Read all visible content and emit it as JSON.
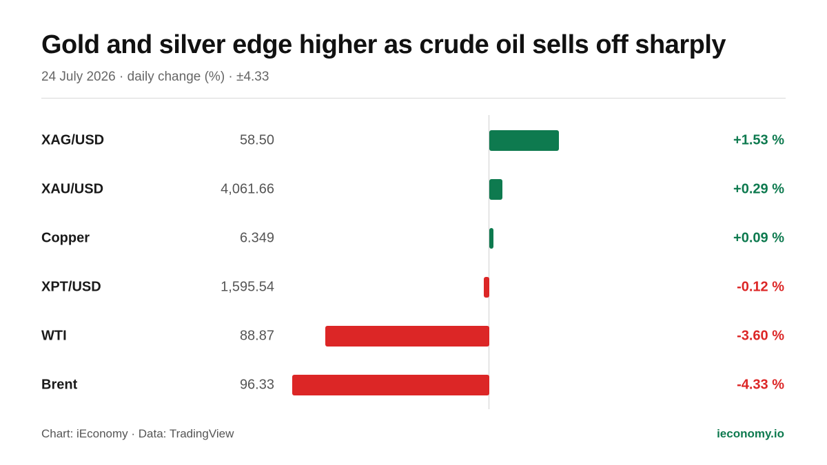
{
  "header": {
    "title": "Gold and silver edge higher as crude oil sells off sharply",
    "subtitle": "24 July 2026 · daily change (%) · ±4.33"
  },
  "footer": {
    "source": "Chart: iEconomy · Data: TradingView",
    "brand": "ieconomy.io"
  },
  "colors": {
    "positive": "#0e7a4f",
    "negative": "#dc2626",
    "brand": "#0e7a4f"
  },
  "chart_data": {
    "type": "bar",
    "orientation": "horizontal",
    "title": "Gold and silver edge higher as crude oil sells off sharply",
    "subtitle": "24 July 2026 · daily change (%) · ±4.33",
    "xlim": [
      -4.33,
      4.33
    ],
    "grid": false,
    "categories": [
      "XAG/USD",
      "XAU/USD",
      "Copper",
      "XPT/USD",
      "WTI",
      "Brent"
    ],
    "prices": [
      "58.50",
      "4,061.66",
      "6.349",
      "1,595.54",
      "88.87",
      "96.33"
    ],
    "values": [
      1.53,
      0.29,
      0.09,
      -0.12,
      -3.6,
      -4.33
    ],
    "change_labels": [
      "+1.53 %",
      "+0.29 %",
      "+0.09 %",
      "-0.12 %",
      "-3.60 %",
      "-4.33 %"
    ]
  }
}
